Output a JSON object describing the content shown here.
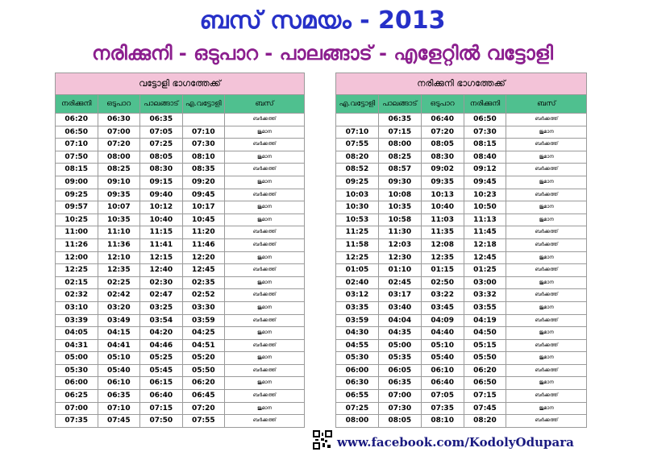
{
  "header": {
    "title": "ബസ് സമയം  -  2013",
    "subtitle": "നരിക്കുനി - ഒടുപാറ - പാലങ്ങാട് - എളേറ്റിൽ  വട്ടോളി"
  },
  "tables": [
    {
      "title": "വട്ടോളി ഭാഗത്തേക്ക്",
      "columns": [
        "നരിക്കുനി",
        "ഒടുപാറ",
        "പാലങ്ങാട്",
        "എ.വട്ടോളി",
        "ബസ്"
      ],
      "rows": [
        [
          "06:20",
          "06:30",
          "06:35",
          null,
          "ബർക്കത്ത്"
        ],
        [
          "06:50",
          "07:00",
          "07:05",
          "07:10",
          "ജുമാന"
        ],
        [
          "07:10",
          "07:20",
          "07:25",
          "07:30",
          "ബർക്കത്ത്"
        ],
        [
          "07:50",
          "08:00",
          "08:05",
          "08:10",
          "ജുമാന"
        ],
        [
          "08:15",
          "08:25",
          "08:30",
          "08:35",
          "ബർക്കത്ത്"
        ],
        [
          "09:00",
          "09:10",
          "09:15",
          "09:20",
          "ജുമാന"
        ],
        [
          "09:25",
          "09:35",
          "09:40",
          "09:45",
          "ബർക്കത്ത്"
        ],
        [
          "09:57",
          "10:07",
          "10:12",
          "10:17",
          "ജുമാന"
        ],
        [
          "10:25",
          "10:35",
          "10:40",
          "10:45",
          "ജുമാന"
        ],
        [
          "11:00",
          "11:10",
          "11:15",
          "11:20",
          "ബർക്കത്ത്"
        ],
        [
          "11:26",
          "11:36",
          "11:41",
          "11:46",
          "ബർക്കത്ത്"
        ],
        [
          "12:00",
          "12:10",
          "12:15",
          "12:20",
          "ജുമാന"
        ],
        [
          "12:25",
          "12:35",
          "12:40",
          "12:45",
          "ബർക്കത്ത്"
        ],
        [
          "02:15",
          "02:25",
          "02:30",
          "02:35",
          "ജുമാന"
        ],
        [
          "02:32",
          "02:42",
          "02:47",
          "02:52",
          "ബർക്കത്ത്"
        ],
        [
          "03:10",
          "03:20",
          "03:25",
          "03:30",
          "ജുമാന"
        ],
        [
          "03:39",
          "03:49",
          "03:54",
          "03:59",
          "ബർക്കത്ത്"
        ],
        [
          "04:05",
          "04:15",
          "04:20",
          "04:25",
          "ജുമാന"
        ],
        [
          "04:31",
          "04:41",
          "04:46",
          "04:51",
          "ബർക്കത്ത്"
        ],
        [
          "05:00",
          "05:10",
          "05:25",
          "05:20",
          "ജുമാന"
        ],
        [
          "05:30",
          "05:40",
          "05:45",
          "05:50",
          "ബർക്കത്ത്"
        ],
        [
          "06:00",
          "06:10",
          "06:15",
          "06:20",
          "ജുമാന"
        ],
        [
          "06:25",
          "06:35",
          "06:40",
          "06:45",
          "ബർക്കത്ത്"
        ],
        [
          "07:00",
          "07:10",
          "07:15",
          "07:20",
          "ജുമാന"
        ],
        [
          "07:35",
          "07:45",
          "07:50",
          "07:55",
          "ബർക്കത്ത്"
        ]
      ]
    },
    {
      "title": "നരിക്കുനി ഭാഗത്തേക്ക്",
      "columns": [
        "എ.വട്ടോളി",
        "പാലങ്ങാട്",
        "ഒടുപാറ",
        "നരിക്കുനി",
        "ബസ്"
      ],
      "rows": [
        [
          null,
          "06:35",
          "06:40",
          "06:50",
          "ബർക്കത്ത്"
        ],
        [
          "07:10",
          "07:15",
          "07:20",
          "07:30",
          "ജുമാന"
        ],
        [
          "07:55",
          "08:00",
          "08:05",
          "08:15",
          "ബർക്കത്ത്"
        ],
        [
          "08:20",
          "08:25",
          "08:30",
          "08:40",
          "ജുമാന"
        ],
        [
          "08:52",
          "08:57",
          "09:02",
          "09:12",
          "ബർക്കത്ത്"
        ],
        [
          "09:25",
          "09:30",
          "09:35",
          "09:45",
          "ജുമാന"
        ],
        [
          "10:03",
          "10:08",
          "10:13",
          "10:23",
          "ബർക്കത്ത്"
        ],
        [
          "10:30",
          "10:35",
          "10:40",
          "10:50",
          "ജുമാന"
        ],
        [
          "10:53",
          "10:58",
          "11:03",
          "11:13",
          "ജുമാന"
        ],
        [
          "11:25",
          "11:30",
          "11:35",
          "11:45",
          "ബർക്കത്ത്"
        ],
        [
          "11:58",
          "12:03",
          "12:08",
          "12:18",
          "ബർക്കത്ത്"
        ],
        [
          "12:25",
          "12:30",
          "12:35",
          "12:45",
          "ജുമാന"
        ],
        [
          "01:05",
          "01:10",
          "01:15",
          "01:25",
          "ബർക്കത്ത്"
        ],
        [
          "02:40",
          "02:45",
          "02:50",
          "03:00",
          "ജുമാന"
        ],
        [
          "03:12",
          "03:17",
          "03:22",
          "03:32",
          "ബർക്കത്ത്"
        ],
        [
          "03:35",
          "03:40",
          "03:45",
          "03:55",
          "ജുമാന"
        ],
        [
          "03:59",
          "04:04",
          "04:09",
          "04:19",
          "ബർക്കത്ത്"
        ],
        [
          "04:30",
          "04:35",
          "04:40",
          "04:50",
          "ജുമാന"
        ],
        [
          "04:55",
          "05:00",
          "05:10",
          "05:15",
          "ബർക്കത്ത്"
        ],
        [
          "05:30",
          "05:35",
          "05:40",
          "05:50",
          "ജുമാന"
        ],
        [
          "06:00",
          "06:05",
          "06:10",
          "06:20",
          "ബർക്കത്ത്"
        ],
        [
          "06:30",
          "06:35",
          "06:40",
          "06:50",
          "ജുമാന"
        ],
        [
          "06:55",
          "07:00",
          "07:05",
          "07:15",
          "ബർക്കത്ത്"
        ],
        [
          "07:25",
          "07:30",
          "07:35",
          "07:45",
          "ജുമാന"
        ],
        [
          "08:00",
          "08:05",
          "08:10",
          "08:20",
          "ബർക്കത്ത്"
        ]
      ]
    }
  ],
  "footer": {
    "link": "www.facebook.com/KodolyOdupara"
  }
}
